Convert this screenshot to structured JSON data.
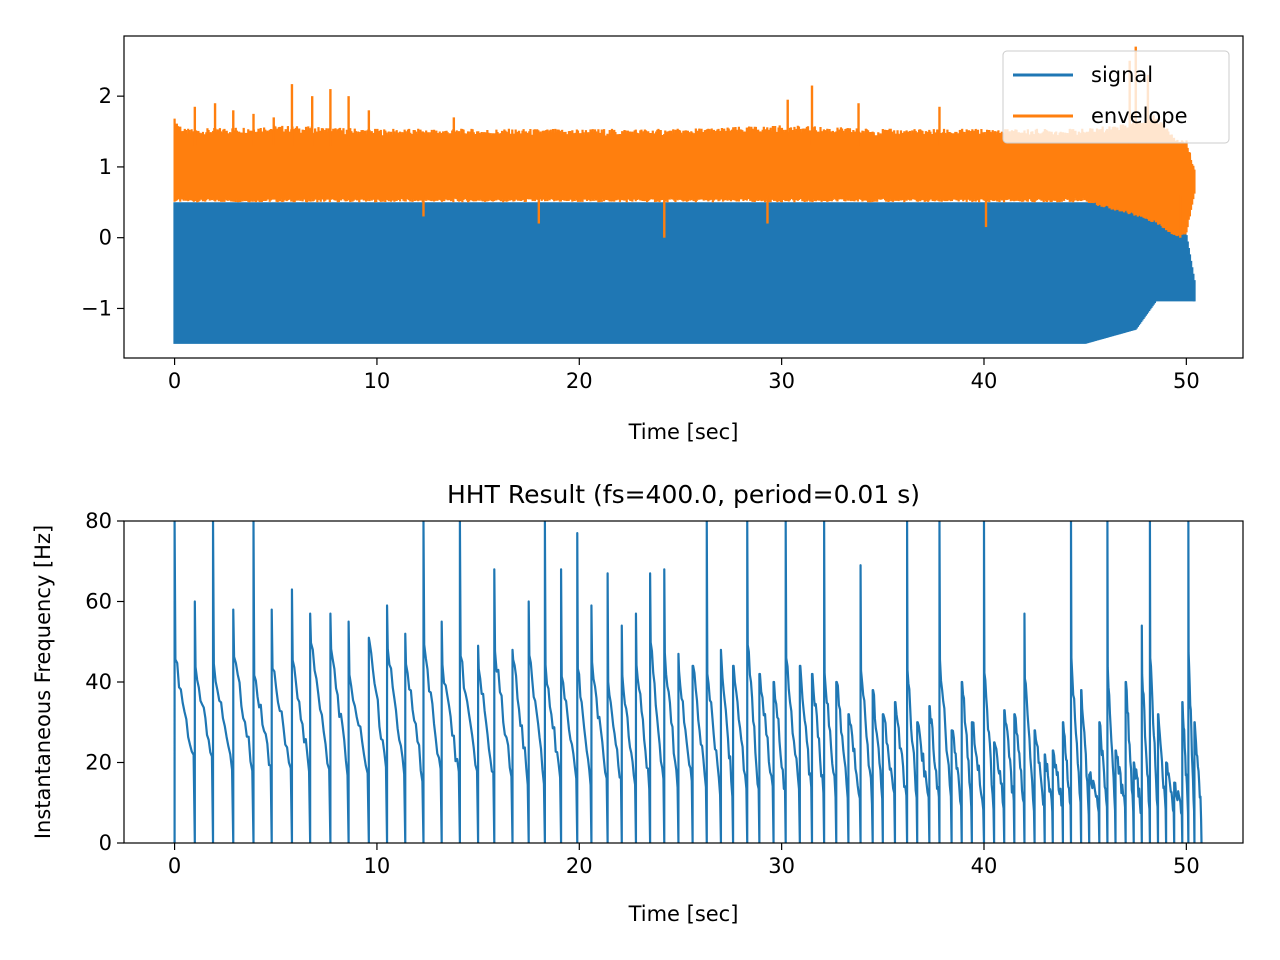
{
  "chart_data": [
    {
      "type": "line",
      "title": "",
      "xlabel": "Time [sec]",
      "ylabel": "",
      "xlim": [
        -2.5,
        52.8
      ],
      "ylim": [
        -1.7,
        2.85
      ],
      "xticks": [
        0,
        10,
        20,
        30,
        40,
        50
      ],
      "xtick_labels": [
        "0",
        "10",
        "20",
        "30",
        "40",
        "50"
      ],
      "yticks": [
        -1,
        0,
        1,
        2
      ],
      "ytick_labels": [
        "−1",
        "0",
        "1",
        "2"
      ],
      "grid": false,
      "legend_position": "top-right",
      "series": [
        {
          "name": "signal",
          "color": "#1f77b4",
          "x": [
            0,
            0.5,
            1,
            5,
            10,
            15,
            20,
            25,
            30,
            35,
            40,
            45,
            47.5,
            48.5,
            49.5,
            50,
            50.4
          ],
          "y_max": [
            0.5,
            0.5,
            0.5,
            0.5,
            0.5,
            0.5,
            0.5,
            0.5,
            0.5,
            0.5,
            0.5,
            0.5,
            0.5,
            0.48,
            0.4,
            0.05,
            -0.6
          ],
          "y_min": [
            -1.5,
            -1.5,
            -1.5,
            -1.5,
            -1.5,
            -1.5,
            -1.5,
            -1.5,
            -1.5,
            -1.5,
            -1.5,
            -1.5,
            -1.3,
            -0.9,
            -0.9,
            -0.9,
            -0.9
          ]
        },
        {
          "name": "envelope",
          "color": "#ff7f0e",
          "x": [
            0,
            0.5,
            1,
            5,
            10,
            15,
            20,
            25,
            30,
            35,
            40,
            45,
            47.5,
            48.5,
            49.5,
            50,
            50.4
          ],
          "y_max": [
            1.65,
            1.5,
            1.5,
            1.55,
            1.5,
            1.5,
            1.5,
            1.5,
            1.55,
            1.5,
            1.5,
            1.5,
            1.6,
            1.7,
            1.4,
            1.35,
            1.0
          ],
          "y_min": [
            0.5,
            0.5,
            0.5,
            0.5,
            0.5,
            0.5,
            0.5,
            0.5,
            0.5,
            0.5,
            0.5,
            0.5,
            0.3,
            0.2,
            0.0,
            0.05,
            0.6
          ],
          "spikes": [
            {
              "x": 1.0,
              "y": 1.85
            },
            {
              "x": 2.0,
              "y": 1.9
            },
            {
              "x": 2.9,
              "y": 1.8
            },
            {
              "x": 3.9,
              "y": 1.75
            },
            {
              "x": 4.9,
              "y": 1.7
            },
            {
              "x": 5.8,
              "y": 2.17
            },
            {
              "x": 6.8,
              "y": 2.0
            },
            {
              "x": 7.7,
              "y": 2.1
            },
            {
              "x": 8.6,
              "y": 2.0
            },
            {
              "x": 9.6,
              "y": 1.8
            },
            {
              "x": 13.8,
              "y": 1.7
            },
            {
              "x": 30.3,
              "y": 1.95
            },
            {
              "x": 31.5,
              "y": 2.15
            },
            {
              "x": 33.8,
              "y": 1.9
            },
            {
              "x": 37.8,
              "y": 1.85
            },
            {
              "x": 47.2,
              "y": 2.5
            },
            {
              "x": 47.5,
              "y": 2.7
            },
            {
              "x": 48.1,
              "y": 2.3
            }
          ],
          "dips": [
            {
              "x": 12.3,
              "y": 0.3
            },
            {
              "x": 18.0,
              "y": 0.2
            },
            {
              "x": 24.2,
              "y": 0.0
            },
            {
              "x": 29.3,
              "y": 0.2
            },
            {
              "x": 40.1,
              "y": 0.15
            },
            {
              "x": 49.7,
              "y": 0.0
            }
          ]
        }
      ]
    },
    {
      "type": "line",
      "title": "HHT Result (fs=400.0, period=0.01 s)",
      "xlabel": "Time [sec]",
      "ylabel": "Instantaneous Frequency [Hz]",
      "xlim": [
        -2.5,
        52.8
      ],
      "ylim": [
        0,
        80
      ],
      "xticks": [
        0,
        10,
        20,
        30,
        40,
        50
      ],
      "xtick_labels": [
        "0",
        "10",
        "20",
        "30",
        "40",
        "50"
      ],
      "yticks": [
        0,
        20,
        40,
        60,
        80
      ],
      "ytick_labels": [
        "0",
        "20",
        "40",
        "60",
        "80"
      ],
      "grid": false,
      "series": [
        {
          "name": "",
          "color": "#1f77b4",
          "resets": [
            {
              "t": 0.0,
              "peak": 80
            },
            {
              "t": 1.0,
              "peak": 60
            },
            {
              "t": 1.9,
              "peak": 80
            },
            {
              "t": 2.9,
              "peak": 58
            },
            {
              "t": 3.9,
              "peak": 80
            },
            {
              "t": 4.8,
              "peak": 58
            },
            {
              "t": 5.8,
              "peak": 63
            },
            {
              "t": 6.7,
              "peak": 57
            },
            {
              "t": 7.7,
              "peak": 57
            },
            {
              "t": 8.6,
              "peak": 55
            },
            {
              "t": 9.6,
              "peak": 51
            },
            {
              "t": 10.5,
              "peak": 59
            },
            {
              "t": 11.4,
              "peak": 52
            },
            {
              "t": 12.3,
              "peak": 80
            },
            {
              "t": 13.2,
              "peak": 55
            },
            {
              "t": 14.1,
              "peak": 80
            },
            {
              "t": 15.0,
              "peak": 49
            },
            {
              "t": 15.8,
              "peak": 68
            },
            {
              "t": 16.7,
              "peak": 48
            },
            {
              "t": 17.5,
              "peak": 60
            },
            {
              "t": 18.3,
              "peak": 80
            },
            {
              "t": 19.1,
              "peak": 68
            },
            {
              "t": 19.9,
              "peak": 77
            },
            {
              "t": 20.6,
              "peak": 59
            },
            {
              "t": 21.4,
              "peak": 67
            },
            {
              "t": 22.1,
              "peak": 54
            },
            {
              "t": 22.8,
              "peak": 57
            },
            {
              "t": 23.5,
              "peak": 67
            },
            {
              "t": 24.2,
              "peak": 68
            },
            {
              "t": 24.9,
              "peak": 47
            },
            {
              "t": 25.6,
              "peak": 44
            },
            {
              "t": 26.3,
              "peak": 80
            },
            {
              "t": 27.0,
              "peak": 48
            },
            {
              "t": 27.6,
              "peak": 44
            },
            {
              "t": 28.3,
              "peak": 80
            },
            {
              "t": 28.9,
              "peak": 42
            },
            {
              "t": 29.6,
              "peak": 40
            },
            {
              "t": 30.2,
              "peak": 80
            },
            {
              "t": 30.9,
              "peak": 44
            },
            {
              "t": 31.5,
              "peak": 42
            },
            {
              "t": 32.1,
              "peak": 80
            },
            {
              "t": 32.7,
              "peak": 40
            },
            {
              "t": 33.3,
              "peak": 32
            },
            {
              "t": 33.9,
              "peak": 69
            },
            {
              "t": 34.5,
              "peak": 38
            },
            {
              "t": 35.0,
              "peak": 32
            },
            {
              "t": 35.6,
              "peak": 35
            },
            {
              "t": 36.2,
              "peak": 80
            },
            {
              "t": 36.7,
              "peak": 30
            },
            {
              "t": 37.3,
              "peak": 34
            },
            {
              "t": 37.8,
              "peak": 80
            },
            {
              "t": 38.4,
              "peak": 28
            },
            {
              "t": 38.9,
              "peak": 40
            },
            {
              "t": 39.4,
              "peak": 30
            },
            {
              "t": 40.0,
              "peak": 80
            },
            {
              "t": 40.5,
              "peak": 25
            },
            {
              "t": 41.0,
              "peak": 33
            },
            {
              "t": 41.5,
              "peak": 32
            },
            {
              "t": 42.0,
              "peak": 57
            },
            {
              "t": 42.5,
              "peak": 28
            },
            {
              "t": 43.0,
              "peak": 22
            },
            {
              "t": 43.4,
              "peak": 23
            },
            {
              "t": 43.9,
              "peak": 30
            },
            {
              "t": 44.3,
              "peak": 80
            },
            {
              "t": 44.8,
              "peak": 38
            },
            {
              "t": 45.2,
              "peak": 17
            },
            {
              "t": 45.7,
              "peak": 30
            },
            {
              "t": 46.1,
              "peak": 80
            },
            {
              "t": 46.5,
              "peak": 23
            },
            {
              "t": 47.0,
              "peak": 40
            },
            {
              "t": 47.4,
              "peak": 20
            },
            {
              "t": 47.8,
              "peak": 54
            },
            {
              "t": 48.2,
              "peak": 80
            },
            {
              "t": 48.6,
              "peak": 32
            },
            {
              "t": 49.0,
              "peak": 20
            },
            {
              "t": 49.4,
              "peak": 15
            },
            {
              "t": 49.8,
              "peak": 35
            },
            {
              "t": 50.1,
              "peak": 80
            },
            {
              "t": 50.4,
              "peak": 30
            }
          ]
        }
      ]
    }
  ]
}
